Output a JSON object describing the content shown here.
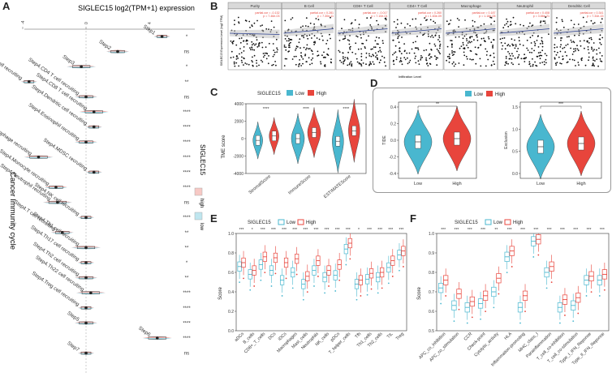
{
  "panels": {
    "a": {
      "label": "A",
      "title": "SIGLEC15 log2(TPM+1) expression",
      "ylabel": "Cancer Immunity cycle",
      "legend_title": "SIGLEC15",
      "legend_high": "high",
      "legend_low": "low"
    },
    "b": {
      "label": "B"
    },
    "c": {
      "label": "C",
      "legend_title": "SIGLEC15",
      "legend_low": "Low",
      "legend_high": "High",
      "ylabel": "TME score"
    },
    "d": {
      "label": "D",
      "legend_low": "Low",
      "legend_high": "High"
    },
    "e": {
      "label": "E",
      "legend_title": "SIGLEC15",
      "legend_low": "Low",
      "legend_high": "High",
      "ylabel": "Score"
    },
    "f": {
      "label": "F",
      "legend_title": "SIGLEC15",
      "legend_low": "Low",
      "legend_high": "High",
      "ylabel": "Score"
    }
  },
  "colors": {
    "low": "#49b7cf",
    "high": "#e8453c",
    "low_light": "#8fd3e3",
    "high_light": "#f4a29c",
    "grey": "#888888",
    "fit": "#2b3f8f"
  },
  "chart_data": [
    {
      "id": "A",
      "type": "scatter",
      "title": "SIGLEC15 log2(TPM+1) expression",
      "xlim": [
        -4,
        8
      ],
      "xticks": [
        -4,
        0,
        4,
        8
      ],
      "categories": [
        "Step1",
        "Step2",
        "Step3",
        "Step4.B cell recruiting",
        "Step4.CD4 T cell recruiting",
        "Step4.CD8 T cell recruiting",
        "Step4.Dendritic cell recruiting",
        "Step4.Eosinophil recruiting",
        "Step4.Macrophage recruiting",
        "Step4.MDSC recruiting",
        "Step4.Monocyte recruiting",
        "Step4.Neutrophil recruiting",
        "Step4.NK cell recruiting",
        "Step4.T cell recruiting",
        "Step4.Th1 cell recruiting",
        "Step4.Th17 cell recruiting",
        "Step4.Th2 cell recruiting",
        "Step4.Th22 cell recruiting",
        "Step4.Treg cell recruiting",
        "Step5",
        "Step6",
        "Step7"
      ],
      "signif": [
        "*",
        "ns",
        "*",
        "**",
        "ns",
        "****",
        "****",
        "****",
        "****",
        "****",
        "****",
        "ns",
        "****",
        "**",
        "**",
        "*",
        "**",
        "****",
        "****",
        "****",
        "****",
        "ns"
      ],
      "values": [
        4.8,
        2.0,
        -0.3,
        -3.6,
        0.0,
        0.5,
        0.5,
        0.0,
        -3.0,
        0.5,
        -1.9,
        -1.8,
        0.0,
        -1.5,
        0.0,
        0.0,
        0.0,
        0.3,
        0.0,
        0.0,
        4.5,
        0.0
      ]
    },
    {
      "id": "B",
      "type": "scatter",
      "ylabel": "SIGLEC15 Expression Level (log2 TPM)",
      "xlabel": "Infiltration Level",
      "facets": [
        {
          "name": "Purity",
          "stat1": "partial.cor = -0.132",
          "stat2": "p = 7.46e-03"
        },
        {
          "name": "B Cell",
          "stat1": "partial.cor = 0.281",
          "stat2": "p = 7.30e-11"
        },
        {
          "name": "CD8+ T Cell",
          "stat1": "partial.cor = -0.017",
          "stat2": "p = 7.10e-01"
        },
        {
          "name": "CD4+ T Cell",
          "stat1": "partial.cor = 0.260",
          "stat2": "p = 1.63e-09"
        },
        {
          "name": "Macrophage",
          "stat1": "partial.cor = 0.187",
          "stat2": "p = 1.18e-05"
        },
        {
          "name": "Neutrophil",
          "stat1": "partial.cor = 0.408",
          "stat2": "p = 3.66e-21"
        },
        {
          "name": "Dendritic Cell",
          "stat1": "partial.cor = 0.341",
          "stat2": "p = 7.34e-15"
        }
      ]
    },
    {
      "id": "C",
      "type": "violin",
      "ylabel": "TME score",
      "yticks": [
        "4000",
        "2000",
        "0",
        "-2000",
        "-4000"
      ],
      "ylim": [
        -4000,
        4000
      ],
      "categories": [
        "StromalScore",
        "ImmuneScore",
        "ESTIMATEScore"
      ],
      "signif": [
        "****",
        "****",
        "****"
      ],
      "series": [
        {
          "name": "Low",
          "values": [
            -200,
            0,
            -300
          ]
        },
        {
          "name": "High",
          "values": [
            300,
            700,
            900
          ]
        }
      ]
    },
    {
      "id": "D",
      "type": "violin",
      "plots": [
        {
          "ylabel": "TIDE",
          "yticks": [
            "0.4",
            "0.2",
            "0.0",
            "-0.2",
            "-0.4"
          ],
          "categories": [
            "Low",
            "High"
          ],
          "signif": "**",
          "values": [
            -0.08,
            -0.05
          ]
        },
        {
          "ylabel": "Exclusion",
          "yticks": [
            "1.5",
            "1.0",
            "0.5",
            "0.0"
          ],
          "categories": [
            "Low",
            "High"
          ],
          "signif": "***",
          "values": [
            0.6,
            0.75
          ]
        }
      ]
    },
    {
      "id": "E",
      "type": "box",
      "ylabel": "Score",
      "yticks": [
        "1.0",
        "0.8",
        "0.6",
        "0.4",
        "0.2",
        "0.0"
      ],
      "ylim": [
        0,
        1
      ],
      "categories": [
        "aDCs",
        "B_cells",
        "CD8+_T_cells",
        "DCs",
        "iDCs",
        "Macrophages",
        "Mast_cells",
        "Neutrophils",
        "NK_cells",
        "pDCs",
        "T_helper_cells",
        "Tfh",
        "Th1_cells",
        "Th2_cells",
        "TIL",
        "Treg"
      ],
      "signif": [
        "***",
        "*",
        "***",
        "***",
        "***",
        "***",
        "***",
        "***",
        "***",
        "***",
        "***",
        "*",
        "***",
        "***",
        "***",
        "***"
      ],
      "series": [
        {
          "name": "Low",
          "values": [
            0.66,
            0.58,
            0.68,
            0.62,
            0.52,
            0.6,
            0.48,
            0.62,
            0.55,
            0.57,
            0.84,
            0.48,
            0.53,
            0.55,
            0.65,
            0.78
          ]
        },
        {
          "name": "High",
          "values": [
            0.7,
            0.62,
            0.76,
            0.75,
            0.7,
            0.74,
            0.56,
            0.72,
            0.62,
            0.68,
            0.9,
            0.52,
            0.59,
            0.6,
            0.72,
            0.82
          ]
        }
      ]
    },
    {
      "id": "F",
      "type": "box",
      "ylabel": "Score",
      "yticks": [
        "1.0",
        "0.9",
        "0.8",
        "0.7",
        "0.6",
        "0.5"
      ],
      "ylim": [
        0.5,
        1.0
      ],
      "categories": [
        "APC_co_inhibition",
        "APC_co_stimulation",
        "CCR",
        "Check-point",
        "Cytolytic_activity",
        "HLA",
        "Inflammation-promoting",
        "MHC_class_I",
        "Parainflammation",
        "T_cell_co-inhibition",
        "T_cell_co-stimulation",
        "Type_I_IFN_Reponse",
        "Type_II_IFN_Reponse"
      ],
      "signif": [
        "***",
        "***",
        "***",
        "***",
        "**",
        "***",
        "***",
        "***",
        "***",
        "***",
        "***",
        "***",
        "***"
      ],
      "series": [
        {
          "name": "Low",
          "values": [
            0.72,
            0.63,
            0.62,
            0.64,
            0.7,
            0.88,
            0.62,
            0.96,
            0.8,
            0.62,
            0.63,
            0.76,
            0.76
          ]
        },
        {
          "name": "High",
          "values": [
            0.76,
            0.69,
            0.65,
            0.68,
            0.77,
            0.91,
            0.68,
            0.97,
            0.83,
            0.66,
            0.67,
            0.78,
            0.79
          ]
        }
      ]
    }
  ]
}
